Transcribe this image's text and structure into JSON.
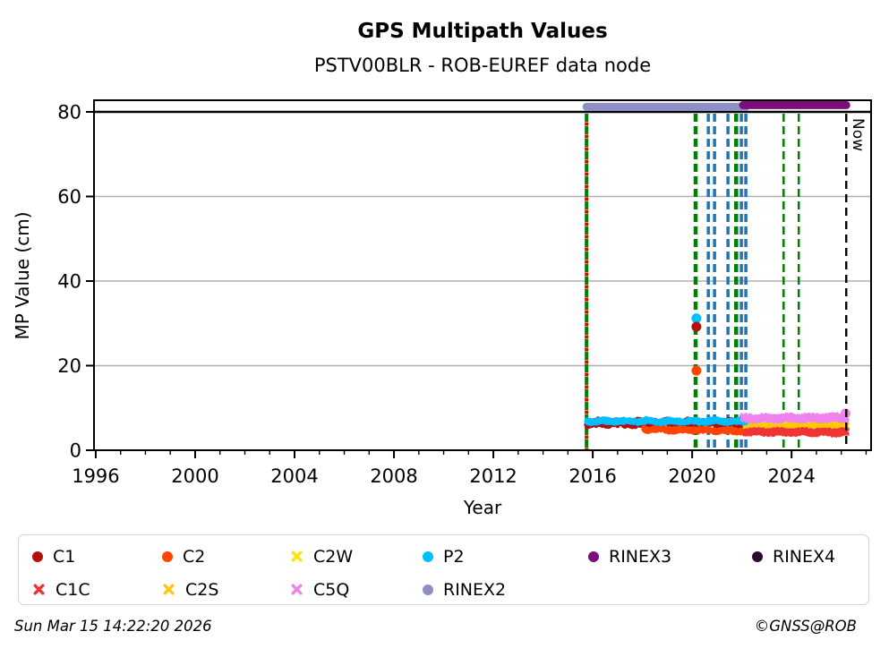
{
  "title": "GPS Multipath Values",
  "subtitle": "PSTV00BLR - ROB-EUREF data node",
  "footer": {
    "timestamp": "Sun Mar 15 14:22:20 2026",
    "credit": "©GNSS@ROB"
  },
  "chart_data": {
    "type": "scatter",
    "title": "GPS Multipath Values",
    "subtitle": "PSTV00BLR - ROB-EUREF data node",
    "xlabel": "Year",
    "ylabel": "MP Value (cm)",
    "xlim": [
      1995.93,
      2027.2
    ],
    "ylim": [
      0,
      82.75
    ],
    "xticks": [
      1996,
      2000,
      2004,
      2008,
      2012,
      2016,
      2020,
      2024
    ],
    "yticks": [
      0,
      20,
      40,
      60,
      80
    ],
    "grid": {
      "y_gray": [
        20,
        40,
        60
      ],
      "y_black": [
        80
      ]
    },
    "bands": [
      {
        "name": "C1",
        "color": "#b30f0f",
        "marker": "circle",
        "x_start": 2015.75,
        "x_end": 2022.16,
        "y_mean": 6.45,
        "y_spread": 1.0,
        "drift": 0.0,
        "seed": 11
      },
      {
        "name": "C2",
        "color": "#ff4500",
        "marker": "circle",
        "x_start": 2018.05,
        "x_end": 2022.16,
        "y_mean": 4.75,
        "y_spread": 0.55,
        "drift": -0.45,
        "seed": 22
      },
      {
        "name": "C2W",
        "color": "#ffe114",
        "marker": "x",
        "x_start": 2022.16,
        "x_end": 2026.2,
        "y_mean": 5.85,
        "y_spread": 0.5,
        "drift": 0.0,
        "seed": 33
      },
      {
        "name": "C2S",
        "color": "#ffc60a",
        "marker": "x",
        "x_start": 2022.16,
        "x_end": 2026.2,
        "y_mean": 5.55,
        "y_spread": 0.5,
        "drift": 0.1,
        "seed": 44
      },
      {
        "name": "C1C",
        "color": "#f03333",
        "marker": "x",
        "x_start": 2022.16,
        "x_end": 2026.2,
        "y_mean": 4.3,
        "y_spread": 0.4,
        "drift": -0.1,
        "seed": 55
      },
      {
        "name": "P2",
        "color": "#00bfff",
        "marker": "circle",
        "x_start": 2015.75,
        "x_end": 2022.16,
        "y_mean": 6.85,
        "y_spread": 0.55,
        "drift": 0.0,
        "seed": 66
      },
      {
        "name": "C5Q",
        "color": "#ee82ee",
        "marker": "x",
        "x_start": 2022.05,
        "x_end": 2026.2,
        "y_mean": 7.6,
        "y_spread": 0.55,
        "drift": 0.2,
        "seed": 77
      }
    ],
    "outliers": [
      {
        "series": "P2",
        "x": 2020.17,
        "y": 31.2
      },
      {
        "series": "C1",
        "x": 2020.17,
        "y": 29.2
      },
      {
        "series": "C2",
        "x": 2020.17,
        "y": 18.8
      },
      {
        "series": "C5Q",
        "x": 2026.17,
        "y": 8.7
      }
    ],
    "events": [
      {
        "x": 2015.75,
        "color": "#008000",
        "color2": "#e00000",
        "width": 4
      },
      {
        "x": 2020.14,
        "color": "#008000",
        "width": 4.5
      },
      {
        "x": 2020.65,
        "color": "#2474b5",
        "width": 3.5
      },
      {
        "x": 2020.9,
        "color": "#2474b5",
        "width": 3.5
      },
      {
        "x": 2021.44,
        "color": "#2474b5",
        "width": 3.5
      },
      {
        "x": 2021.77,
        "color": "#008000",
        "width": 4.5
      },
      {
        "x": 2021.98,
        "color": "#2474b5",
        "width": 3.5
      },
      {
        "x": 2022.16,
        "color": "#2474b5",
        "width": 3.5
      },
      {
        "x": 2023.68,
        "color": "#008000",
        "width": 2.5
      },
      {
        "x": 2024.29,
        "color": "#008000",
        "width": 2.5
      }
    ],
    "format_bars": [
      {
        "name": "RINEX2",
        "color": "#8f8fc7",
        "x_start": 2015.75,
        "x_end": 2022.16,
        "y": 81.2
      },
      {
        "name": "RINEX3",
        "color": "#7c0e7c",
        "x_start": 2022.05,
        "x_end": 2026.2,
        "y": 81.6
      }
    ],
    "now_line": {
      "x": 2026.2,
      "label": "Now",
      "color": "#000000"
    }
  },
  "legend": {
    "rows": [
      [
        {
          "label": "C1",
          "color": "#b30f0f",
          "marker": "circle"
        },
        {
          "label": "C2",
          "color": "#ff4500",
          "marker": "circle"
        },
        {
          "label": "C2W",
          "color": "#ffe114",
          "marker": "x"
        },
        {
          "label": "P2",
          "color": "#00bfff",
          "marker": "circle"
        },
        {
          "label": "RINEX3",
          "color": "#7c0e7c",
          "marker": "circle"
        },
        {
          "label": "RINEX4",
          "color": "#2e082e",
          "marker": "circle"
        }
      ],
      [
        {
          "label": "C1C",
          "color": "#f03333",
          "marker": "x"
        },
        {
          "label": "C2S",
          "color": "#ffc60a",
          "marker": "x"
        },
        {
          "label": "C5Q",
          "color": "#ee82ee",
          "marker": "x"
        },
        {
          "label": "RINEX2",
          "color": "#8f8fc7",
          "marker": "circle"
        }
      ]
    ]
  }
}
